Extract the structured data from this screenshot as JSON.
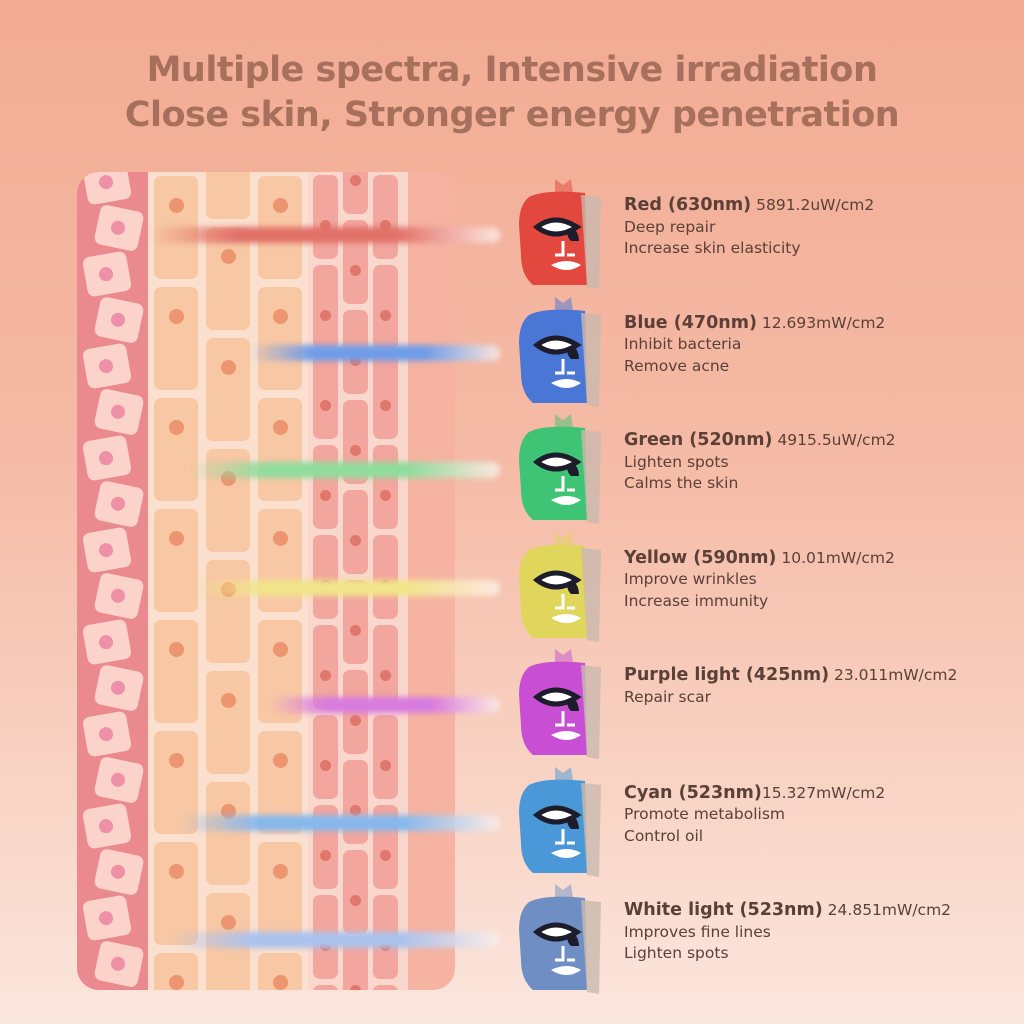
{
  "header": {
    "line1": "Multiple spectra, Intensive irradiation",
    "line2": "Close skin, Stronger energy penetration"
  },
  "items": [
    {
      "name": "Red (630nm)",
      "power": " 5891.2uW/cm2",
      "benefits": [
        "Deep repair",
        "Increase skin elasticity"
      ],
      "color": "#e2483d",
      "beam": "#e07068"
    },
    {
      "name": "Blue (470nm)",
      "power": " 12.693mW/cm2",
      "benefits": [
        "Inhibit bacteria",
        "Remove acne"
      ],
      "color": "#4a76d6",
      "beam": "#6f9ce8"
    },
    {
      "name": "Green (520nm)",
      "power": " 4915.5uW/cm2",
      "benefits": [
        "Lighten spots",
        "Calms the skin"
      ],
      "color": "#3fc476",
      "beam": "#8fdc9c"
    },
    {
      "name": "Yellow (590nm)",
      "power": " 10.01mW/cm2",
      "benefits": [
        "Improve wrinkles",
        "Increase immunity"
      ],
      "color": "#e0d65c",
      "beam": "#f1e48a"
    },
    {
      "name": "Purple light (425nm)",
      "power": " 23.011mW/cm2",
      "benefits": [
        "Repair scar"
      ],
      "color": "#c84fd4",
      "beam": "#d77be0"
    },
    {
      "name": "Cyan (523nm)",
      "power": "15.327mW/cm2",
      "benefits": [
        "Promote metabolism",
        "Control oil"
      ],
      "color": "#4b98d8",
      "beam": "#86b8ec"
    },
    {
      "name": "White light (523nm)",
      "power": " 24.851mW/cm2",
      "benefits": [
        "Improves fine lines",
        "Lighten spots"
      ],
      "color": "#6f8fc4",
      "beam": "#a9c2ee"
    }
  ]
}
